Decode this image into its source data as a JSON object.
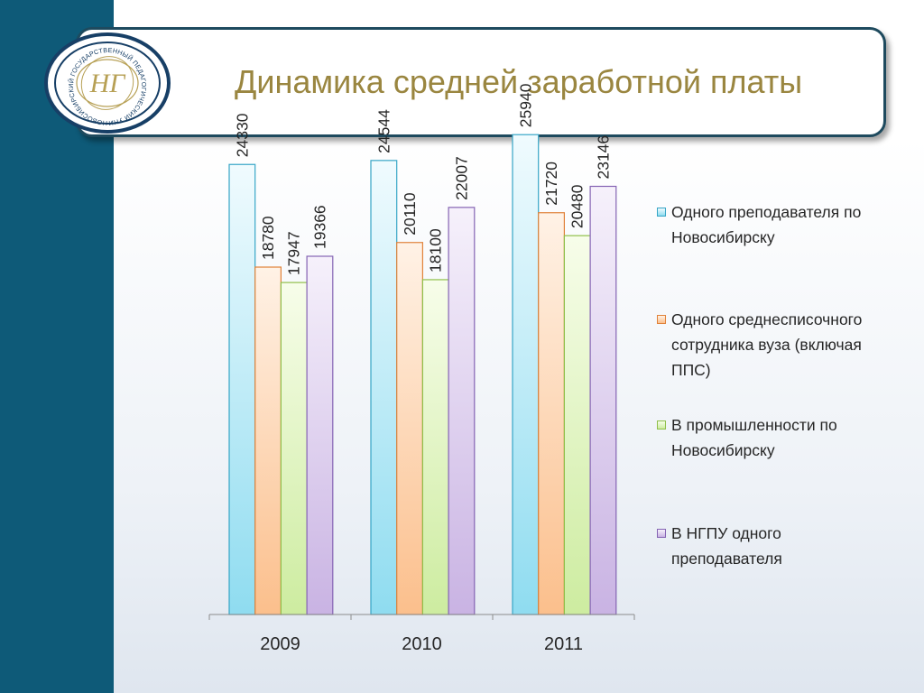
{
  "slide": {
    "title": "Динамика средней заработной платы",
    "logo_text": "НОВОСИБИРСКИЙ ГОСУДАРСТВЕННЫЙ ПЕДАГОГИЧЕСКИЙ УНИВЕРСИТЕТ",
    "logo_monogram": "НГ"
  },
  "colors": {
    "left_band": "#0e5a78",
    "title_text": "#9a8640",
    "logo_ring": "#173f66",
    "logo_gold": "#b7a055"
  },
  "chart_data": {
    "type": "bar",
    "title": "",
    "xlabel": "",
    "ylabel": "",
    "ylim": [
      0,
      30000
    ],
    "grid": false,
    "legend_position": "right",
    "categories": [
      "2009",
      "2010",
      "2011"
    ],
    "series": [
      {
        "name": "Одного преподавателя по Новосибирску",
        "values": [
          24330,
          24544,
          25940
        ],
        "color_light": "#f0fbfe",
        "color_dark": "#8fdcf0",
        "stroke": "#36a5c6"
      },
      {
        "name": "Одного среднесписочного сотрудника вуза (включая ППС)",
        "values": [
          18780,
          20110,
          21720
        ],
        "color_light": "#fff2e6",
        "color_dark": "#fbbf8c",
        "stroke": "#e0823a"
      },
      {
        "name": "В промышленности по Новосибирску",
        "values": [
          17947,
          18100,
          20480
        ],
        "color_light": "#f7fdea",
        "color_dark": "#cdeca0",
        "stroke": "#8fbf4a"
      },
      {
        "name": "В НГПУ одного преподавателя",
        "values": [
          19366,
          22007,
          23146
        ],
        "color_light": "#f6f1fb",
        "color_dark": "#c9b3e3",
        "stroke": "#8463b3"
      }
    ]
  }
}
